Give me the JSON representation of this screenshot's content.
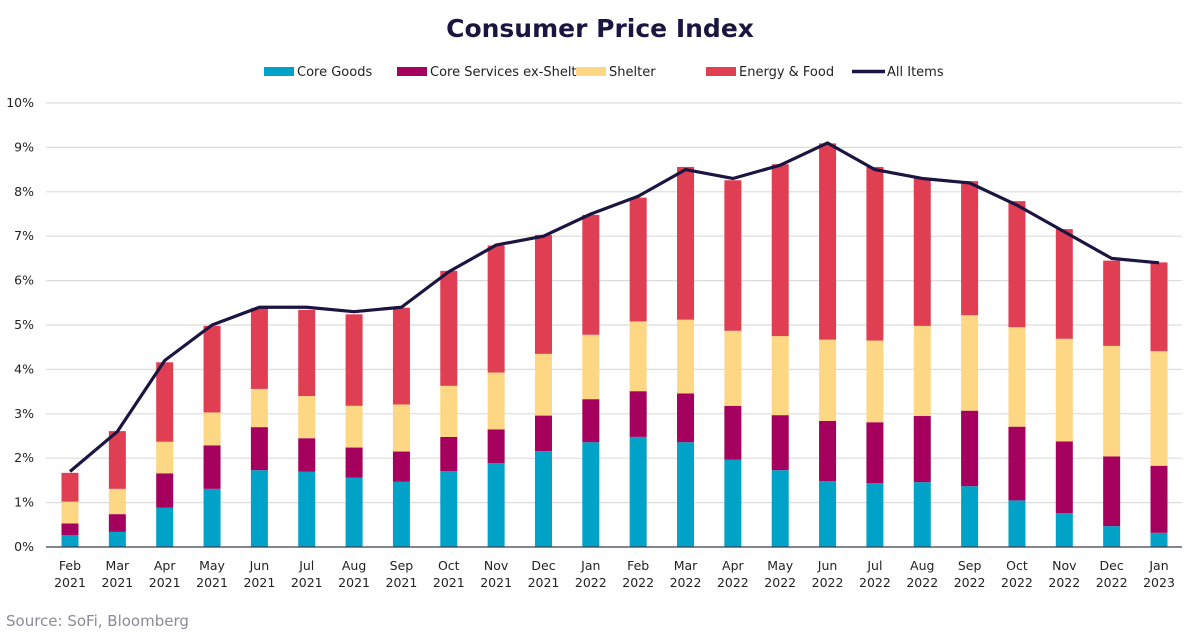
{
  "chart_data": {
    "type": "bar",
    "stacked": true,
    "title": "Consumer Price Index",
    "source": "Source: SoFi, Bloomberg",
    "categories": [
      [
        "Feb",
        "2021"
      ],
      [
        "Mar",
        "2021"
      ],
      [
        "Apr",
        "2021"
      ],
      [
        "May",
        "2021"
      ],
      [
        "Jun",
        "2021"
      ],
      [
        "Jul",
        "2021"
      ],
      [
        "Aug",
        "2021"
      ],
      [
        "Sep",
        "2021"
      ],
      [
        "Oct",
        "2021"
      ],
      [
        "Nov",
        "2021"
      ],
      [
        "Dec",
        "2021"
      ],
      [
        "Jan",
        "2022"
      ],
      [
        "Feb",
        "2022"
      ],
      [
        "Mar",
        "2022"
      ],
      [
        "Apr",
        "2022"
      ],
      [
        "May",
        "2022"
      ],
      [
        "Jun",
        "2022"
      ],
      [
        "Jul",
        "2022"
      ],
      [
        "Aug",
        "2022"
      ],
      [
        "Sep",
        "2022"
      ],
      [
        "Oct",
        "2022"
      ],
      [
        "Nov",
        "2022"
      ],
      [
        "Dec",
        "2022"
      ],
      [
        "Jan",
        "2023"
      ]
    ],
    "ylim": [
      0,
      10
    ],
    "yticks": [
      "0%",
      "1%",
      "2%",
      "3%",
      "4%",
      "5%",
      "6%",
      "7%",
      "8%",
      "9%",
      "10%"
    ],
    "grid": true,
    "legend_position": "top",
    "series": [
      {
        "name": "Core Goods",
        "type": "bar",
        "color": "#00a3c7",
        "values": [
          0.27,
          0.34,
          0.89,
          1.31,
          1.73,
          1.7,
          1.56,
          1.47,
          1.71,
          1.89,
          2.16,
          2.36,
          2.48,
          2.36,
          1.97,
          1.73,
          1.48,
          1.44,
          1.46,
          1.37,
          1.05,
          0.76,
          0.47,
          0.32
        ]
      },
      {
        "name": "Core Services ex-Shelter",
        "type": "bar",
        "color": "#a5005d",
        "values": [
          0.26,
          0.4,
          0.77,
          0.98,
          0.97,
          0.75,
          0.68,
          0.68,
          0.77,
          0.76,
          0.8,
          0.97,
          1.03,
          1.1,
          1.21,
          1.24,
          1.36,
          1.37,
          1.49,
          1.7,
          1.66,
          1.62,
          1.57,
          1.51
        ]
      },
      {
        "name": "Shelter",
        "type": "bar",
        "color": "#fdd783",
        "values": [
          0.49,
          0.57,
          0.71,
          0.74,
          0.86,
          0.95,
          0.94,
          1.06,
          1.15,
          1.28,
          1.39,
          1.45,
          1.57,
          1.66,
          1.69,
          1.78,
          1.83,
          1.84,
          2.03,
          2.15,
          2.24,
          2.31,
          2.49,
          2.58
        ]
      },
      {
        "name": "Energy & Food",
        "type": "bar",
        "color": "#e03e52",
        "values": [
          0.65,
          1.3,
          1.79,
          1.95,
          1.82,
          1.94,
          2.06,
          2.18,
          2.59,
          2.86,
          2.68,
          2.7,
          2.79,
          3.44,
          3.39,
          3.87,
          4.42,
          3.91,
          3.32,
          3.02,
          2.84,
          2.47,
          1.92,
          2.0
        ]
      },
      {
        "name": "All Items",
        "type": "line",
        "color": "#1b1541",
        "values": [
          1.7,
          2.6,
          4.2,
          5.0,
          5.4,
          5.4,
          5.3,
          5.4,
          6.2,
          6.8,
          7.0,
          7.5,
          7.9,
          8.5,
          8.3,
          8.6,
          9.1,
          8.5,
          8.3,
          8.2,
          7.7,
          7.1,
          6.5,
          6.4
        ]
      }
    ]
  }
}
